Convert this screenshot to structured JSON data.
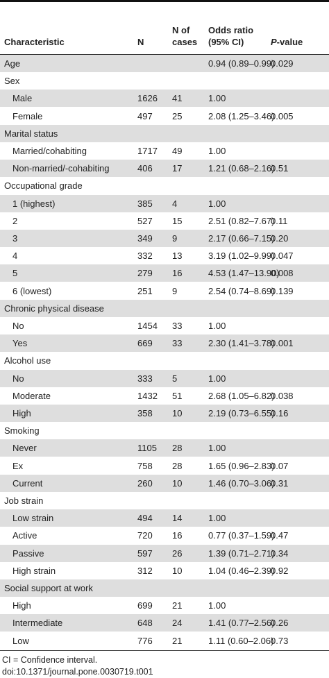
{
  "header": {
    "characteristic": "Characteristic",
    "n": "N",
    "cases": [
      "N of",
      "cases"
    ],
    "odds_ratio": [
      "Odds ratio",
      "(95% CI)"
    ],
    "p_value": {
      "italic": "P",
      "rest": "-value"
    }
  },
  "groups": [
    {
      "label": "Age",
      "odds_ratio": "0.94 (0.89–0.99)",
      "p_value": "0.029"
    },
    {
      "label": "Sex",
      "items": [
        {
          "label": "Male",
          "n": 1626,
          "cases": 41,
          "odds_ratio": "1.00"
        },
        {
          "label": "Female",
          "n": 497,
          "cases": 25,
          "odds_ratio": "2.08 (1.25–3.46)",
          "p_value": "0.005"
        }
      ]
    },
    {
      "label": "Marital status",
      "items": [
        {
          "label": "Married/cohabiting",
          "n": 1717,
          "cases": 49,
          "odds_ratio": "1.00"
        },
        {
          "label": "Non-married/-cohabiting",
          "n": 406,
          "cases": 17,
          "odds_ratio": "1.21 (0.68–2.16)",
          "p_value": "0.51"
        }
      ]
    },
    {
      "label": "Occupational grade",
      "items": [
        {
          "label": "1 (highest)",
          "n": 385,
          "cases": 4,
          "odds_ratio": "1.00"
        },
        {
          "label": "2",
          "n": 527,
          "cases": 15,
          "odds_ratio": "2.51 (0.82–7.67)",
          "p_value": "0.11"
        },
        {
          "label": "3",
          "n": 349,
          "cases": 9,
          "odds_ratio": "2.17 (0.66–7.15)",
          "p_value": "0.20"
        },
        {
          "label": "4",
          "n": 332,
          "cases": 13,
          "odds_ratio": "3.19 (1.02–9.99)",
          "p_value": "0.047"
        },
        {
          "label": "5",
          "n": 279,
          "cases": 16,
          "odds_ratio": "4.53 (1.47–13.90)",
          "p_value": "0.008"
        },
        {
          "label": "6 (lowest)",
          "n": 251,
          "cases": 9,
          "odds_ratio": "2.54 (0.74–8.69)",
          "p_value": "0.139"
        }
      ]
    },
    {
      "label": "Chronic physical disease",
      "items": [
        {
          "label": "No",
          "n": 1454,
          "cases": 33,
          "odds_ratio": "1.00"
        },
        {
          "label": "Yes",
          "n": 669,
          "cases": 33,
          "odds_ratio": "2.30 (1.41–3.78)",
          "p_value": "0.001"
        }
      ]
    },
    {
      "label": "Alcohol use",
      "items": [
        {
          "label": "No",
          "n": 333,
          "cases": 5,
          "odds_ratio": "1.00"
        },
        {
          "label": "Moderate",
          "n": 1432,
          "cases": 51,
          "odds_ratio": "2.68 (1.05–6.82)",
          "p_value": "0.038"
        },
        {
          "label": "High",
          "n": 358,
          "cases": 10,
          "odds_ratio": "2.19 (0.73–6.55)",
          "p_value": "0.16"
        }
      ]
    },
    {
      "label": "Smoking",
      "items": [
        {
          "label": "Never",
          "n": 1105,
          "cases": 28,
          "odds_ratio": "1.00"
        },
        {
          "label": "Ex",
          "n": 758,
          "cases": 28,
          "odds_ratio": "1.65 (0.96–2.83)",
          "p_value": "0.07"
        },
        {
          "label": "Current",
          "n": 260,
          "cases": 10,
          "odds_ratio": "1.46 (0.70–3.06)",
          "p_value": "0.31"
        }
      ]
    },
    {
      "label": "Job strain",
      "items": [
        {
          "label": "Low strain",
          "n": 494,
          "cases": 14,
          "odds_ratio": "1.00"
        },
        {
          "label": "Active",
          "n": 720,
          "cases": 16,
          "odds_ratio": "0.77 (0.37–1.59)",
          "p_value": "0.47"
        },
        {
          "label": "Passive",
          "n": 597,
          "cases": 26,
          "odds_ratio": "1.39 (0.71–2.71)",
          "p_value": "0.34"
        },
        {
          "label": "High strain",
          "n": 312,
          "cases": 10,
          "odds_ratio": "1.04 (0.46–2.39)",
          "p_value": "0.92"
        }
      ]
    },
    {
      "label": "Social support at work",
      "items": [
        {
          "label": "High",
          "n": 699,
          "cases": 21,
          "odds_ratio": "1.00"
        },
        {
          "label": "Intermediate",
          "n": 648,
          "cases": 24,
          "odds_ratio": "1.41 (0.77–2.56)",
          "p_value": "0.26"
        },
        {
          "label": "Low",
          "n": 776,
          "cases": 21,
          "odds_ratio": "1.11 (0.60–2.06)",
          "p_value": "0.73"
        }
      ]
    }
  ],
  "footnotes": [
    "CI = Confidence interval.",
    "doi:10.1371/journal.pone.0030719.t001"
  ]
}
